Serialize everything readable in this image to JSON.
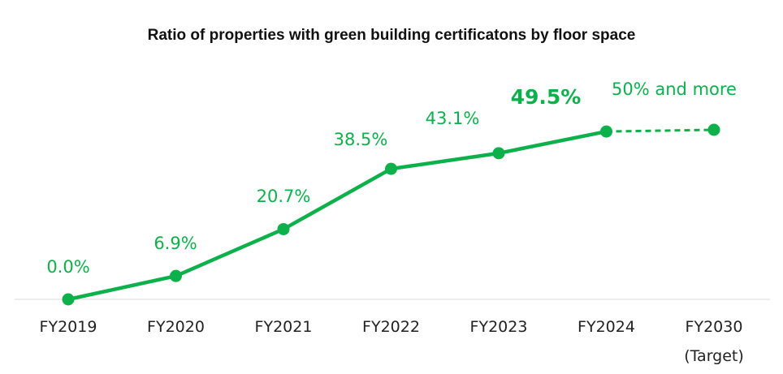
{
  "chart_data": {
    "type": "line",
    "title": "Ratio of properties with green building certificatons by floor space",
    "categories": [
      "FY2019",
      "FY2020",
      "FY2021",
      "FY2022",
      "FY2023",
      "FY2024",
      "FY2030"
    ],
    "category_sublabels": [
      "",
      "",
      "",
      "",
      "",
      "",
      "(Target)"
    ],
    "series": [
      {
        "values": [
          0.0,
          6.9,
          20.7,
          38.5,
          43.1,
          49.5,
          50
        ],
        "data_labels": [
          "0.0%",
          "6.9%",
          "20.7%",
          "38.5%",
          "43.1%",
          "49.5%",
          "50% and more"
        ],
        "highlight_index": 5,
        "target_index": 6
      }
    ],
    "ylim": [
      0,
      50
    ],
    "grid": false,
    "line_color": "#0db14b",
    "axis_color": "#d9d9d9"
  }
}
